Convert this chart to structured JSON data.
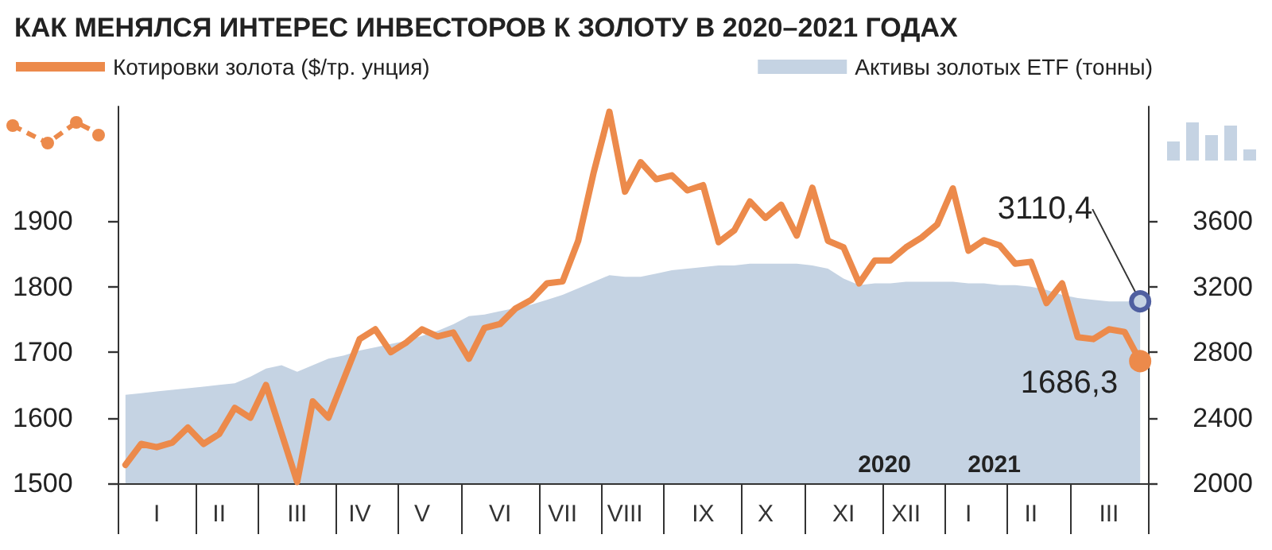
{
  "chart_data": {
    "type": "line",
    "title": "КАК МЕНЯЛСЯ ИНТЕРЕС ИНВЕСТОРОВ К ЗОЛОТУ В 2020–2021 ГОДАХ",
    "categories": [
      null,
      null,
      "I",
      null,
      null,
      null,
      "II",
      null,
      null,
      null,
      null,
      "III",
      null,
      null,
      null,
      "IV",
      null,
      null,
      null,
      "V",
      null,
      null,
      null,
      null,
      "VI",
      null,
      null,
      null,
      "VII",
      null,
      null,
      null,
      "VIII",
      null,
      null,
      null,
      null,
      "IX",
      null,
      null,
      null,
      "X",
      null,
      null,
      null,
      null,
      "XI",
      null,
      null,
      null,
      "XII",
      null,
      null,
      null,
      "I",
      null,
      null,
      null,
      "II",
      null,
      null,
      null,
      null,
      "III",
      null,
      null
    ],
    "ylim": [
      1500,
      2075
    ],
    "yticks": [
      1500,
      1600,
      1700,
      1800,
      1900
    ],
    "y2lim": [
      2000,
      4300
    ],
    "y2ticks": [
      2000,
      2400,
      2800,
      3200,
      3600
    ],
    "legend": "top",
    "grid": false,
    "annotations": [
      "2020",
      "2021"
    ],
    "series": [
      {
        "name": "Активы золотых ETF (тонны)",
        "type": "area",
        "axis": "y2",
        "color": "#c5d3e3",
        "values": [
          2540,
          2550,
          2560,
          2570,
          2580,
          2590,
          2600,
          2610,
          2650,
          2700,
          2720,
          2680,
          2720,
          2760,
          2780,
          2810,
          2830,
          2850,
          2870,
          2900,
          2930,
          2970,
          3020,
          3030,
          3050,
          3070,
          3090,
          3120,
          3150,
          3190,
          3230,
          3270,
          3260,
          3260,
          3280,
          3300,
          3310,
          3320,
          3330,
          3330,
          3340,
          3340,
          3340,
          3340,
          3330,
          3310,
          3250,
          3210,
          3220,
          3220,
          3230,
          3230,
          3230,
          3230,
          3220,
          3220,
          3210,
          3210,
          3200,
          3180,
          3150,
          3130,
          3120,
          3110,
          3110,
          3110.4
        ],
        "value_labels": [
          null,
          null,
          null,
          null,
          null,
          null,
          null,
          null,
          null,
          null,
          null,
          null,
          null,
          null,
          null,
          null,
          null,
          null,
          null,
          null,
          null,
          null,
          null,
          null,
          null,
          null,
          null,
          null,
          null,
          null,
          null,
          null,
          null,
          null,
          null,
          null,
          null,
          null,
          null,
          null,
          null,
          null,
          null,
          null,
          null,
          null,
          null,
          null,
          null,
          null,
          null,
          null,
          null,
          null,
          null,
          null,
          null,
          null,
          null,
          null,
          null,
          null,
          null,
          null,
          null,
          "3110,4"
        ]
      },
      {
        "name": "Котировки золота ($/тр. унция)",
        "color": "#ec8a4b",
        "values": [
          1528,
          1560,
          1555,
          1562,
          1585,
          1560,
          1575,
          1615,
          1600,
          1650,
          1576,
          1502,
          1625,
          1600,
          1660,
          1720,
          1735,
          1700,
          1715,
          1735,
          1724,
          1730,
          1690,
          1737,
          1743,
          1767,
          1780,
          1805,
          1808,
          1870,
          1975,
          2067,
          1945,
          1990,
          1964,
          1970,
          1947,
          1955,
          1868,
          1886,
          1930,
          1905,
          1925,
          1878,
          1951,
          1870,
          1860,
          1805,
          1840,
          1840,
          1860,
          1875,
          1895,
          1950,
          1855,
          1871,
          1863,
          1835,
          1838,
          1775,
          1805,
          1723,
          1720,
          1735,
          1731,
          1686.3
        ],
        "value_labels": [
          null,
          null,
          null,
          null,
          null,
          null,
          null,
          null,
          null,
          null,
          null,
          null,
          null,
          null,
          null,
          null,
          null,
          null,
          null,
          null,
          null,
          null,
          null,
          null,
          null,
          null,
          null,
          null,
          null,
          null,
          null,
          null,
          null,
          null,
          null,
          null,
          null,
          null,
          null,
          null,
          null,
          null,
          null,
          null,
          null,
          null,
          null,
          null,
          null,
          null,
          null,
          null,
          null,
          null,
          null,
          null,
          null,
          null,
          null,
          null,
          null,
          null,
          null,
          null,
          null,
          "1686,3"
        ]
      }
    ]
  }
}
